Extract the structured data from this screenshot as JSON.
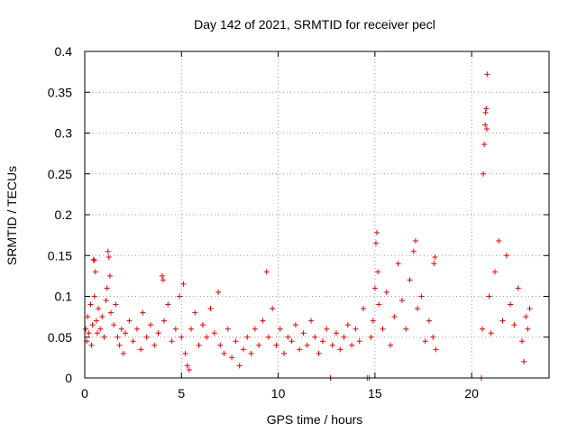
{
  "chart_data": {
    "type": "scatter",
    "title": "Day 142 of 2021, SRMTID for receiver pecl",
    "xlabel": "GPS time / hours",
    "ylabel": "SRMTID / TECUs",
    "xlim": [
      0,
      24
    ],
    "ylim": [
      0,
      0.4
    ],
    "xticks": [
      0,
      5,
      10,
      15,
      20
    ],
    "xtick_labels": [
      "0",
      "5",
      "10",
      "15",
      "20"
    ],
    "yticks": [
      0,
      0.05,
      0.1,
      0.15,
      0.2,
      0.25,
      0.3,
      0.35,
      0.4
    ],
    "ytick_labels": [
      "0",
      "0.05",
      "0.1",
      "0.15",
      "0.2",
      "0.25",
      "0.3",
      "0.35",
      "0.4"
    ],
    "grid": true,
    "marker": "plus",
    "marker_color": "#ee0000",
    "series": [
      {
        "name": "SRMTID",
        "points": [
          [
            0.05,
            0.06
          ],
          [
            0.1,
            0.045
          ],
          [
            0.15,
            0.075
          ],
          [
            0.2,
            0.055
          ],
          [
            0.3,
            0.09
          ],
          [
            0.35,
            0.04
          ],
          [
            0.4,
            0.065
          ],
          [
            0.45,
            0.145
          ],
          [
            0.5,
            0.144
          ],
          [
            0.5,
            0.1
          ],
          [
            0.55,
            0.13
          ],
          [
            0.6,
            0.07
          ],
          [
            0.65,
            0.055
          ],
          [
            0.7,
            0.085
          ],
          [
            0.8,
            0.06
          ],
          [
            0.9,
            0.075
          ],
          [
            1.0,
            0.05
          ],
          [
            1.1,
            0.095
          ],
          [
            1.15,
            0.11
          ],
          [
            1.2,
            0.155
          ],
          [
            1.25,
            0.148
          ],
          [
            1.3,
            0.125
          ],
          [
            1.35,
            0.08
          ],
          [
            1.5,
            0.065
          ],
          [
            1.6,
            0.09
          ],
          [
            1.7,
            0.05
          ],
          [
            1.8,
            0.04
          ],
          [
            1.9,
            0.06
          ],
          [
            2.0,
            0.03
          ],
          [
            2.1,
            0.055
          ],
          [
            2.3,
            0.07
          ],
          [
            2.5,
            0.045
          ],
          [
            2.7,
            0.06
          ],
          [
            2.9,
            0.035
          ],
          [
            3.0,
            0.08
          ],
          [
            3.2,
            0.05
          ],
          [
            3.4,
            0.065
          ],
          [
            3.6,
            0.04
          ],
          [
            3.8,
            0.055
          ],
          [
            4.0,
            0.125
          ],
          [
            4.05,
            0.12
          ],
          [
            4.1,
            0.07
          ],
          [
            4.3,
            0.09
          ],
          [
            4.5,
            0.045
          ],
          [
            4.7,
            0.06
          ],
          [
            4.9,
            0.1
          ],
          [
            5.0,
            0.05
          ],
          [
            5.1,
            0.115
          ],
          [
            5.2,
            0.03
          ],
          [
            5.3,
            0.015
          ],
          [
            5.4,
            0.01
          ],
          [
            5.5,
            0.06
          ],
          [
            5.7,
            0.08
          ],
          [
            5.9,
            0.04
          ],
          [
            6.1,
            0.065
          ],
          [
            6.3,
            0.05
          ],
          [
            6.5,
            0.085
          ],
          [
            6.7,
            0.055
          ],
          [
            6.9,
            0.105
          ],
          [
            7.0,
            0.04
          ],
          [
            7.2,
            0.03
          ],
          [
            7.4,
            0.06
          ],
          [
            7.6,
            0.025
          ],
          [
            7.8,
            0.045
          ],
          [
            8.0,
            0.015
          ],
          [
            8.2,
            0.035
          ],
          [
            8.4,
            0.05
          ],
          [
            8.6,
            0.03
          ],
          [
            8.8,
            0.06
          ],
          [
            9.0,
            0.04
          ],
          [
            9.2,
            0.07
          ],
          [
            9.4,
            0.13
          ],
          [
            9.5,
            0.05
          ],
          [
            9.7,
            0.085
          ],
          [
            9.9,
            0.04
          ],
          [
            10.1,
            0.06
          ],
          [
            10.3,
            0.03
          ],
          [
            10.5,
            0.05
          ],
          [
            10.7,
            0.045
          ],
          [
            10.9,
            0.065
          ],
          [
            11.1,
            0.035
          ],
          [
            11.3,
            0.055
          ],
          [
            11.5,
            0.04
          ],
          [
            11.7,
            0.07
          ],
          [
            11.9,
            0.05
          ],
          [
            12.1,
            0.03
          ],
          [
            12.3,
            0.045
          ],
          [
            12.5,
            0.06
          ],
          [
            12.7,
            0.0
          ],
          [
            12.8,
            0.04
          ],
          [
            13.0,
            0.055
          ],
          [
            13.2,
            0.035
          ],
          [
            13.4,
            0.05
          ],
          [
            13.6,
            0.065
          ],
          [
            13.8,
            0.04
          ],
          [
            14.0,
            0.06
          ],
          [
            14.2,
            0.045
          ],
          [
            14.4,
            0.085
          ],
          [
            14.6,
            0.0
          ],
          [
            14.7,
            0.0
          ],
          [
            14.8,
            0.05
          ],
          [
            14.9,
            0.07
          ],
          [
            15.0,
            0.11
          ],
          [
            15.05,
            0.165
          ],
          [
            15.1,
            0.178
          ],
          [
            15.15,
            0.13
          ],
          [
            15.2,
            0.09
          ],
          [
            15.4,
            0.06
          ],
          [
            15.6,
            0.105
          ],
          [
            15.8,
            0.04
          ],
          [
            16.0,
            0.075
          ],
          [
            16.2,
            0.14
          ],
          [
            16.4,
            0.095
          ],
          [
            16.6,
            0.06
          ],
          [
            16.8,
            0.12
          ],
          [
            17.0,
            0.155
          ],
          [
            17.1,
            0.168
          ],
          [
            17.2,
            0.085
          ],
          [
            17.4,
            0.1
          ],
          [
            17.6,
            0.045
          ],
          [
            17.8,
            0.07
          ],
          [
            18.0,
            0.05
          ],
          [
            18.05,
            0.14
          ],
          [
            18.1,
            0.148
          ],
          [
            18.15,
            0.035
          ],
          [
            20.5,
            0.0
          ],
          [
            20.55,
            0.06
          ],
          [
            20.6,
            0.25
          ],
          [
            20.65,
            0.286
          ],
          [
            20.7,
            0.31
          ],
          [
            20.72,
            0.325
          ],
          [
            20.75,
            0.33
          ],
          [
            20.78,
            0.305
          ],
          [
            20.8,
            0.372
          ],
          [
            20.9,
            0.1
          ],
          [
            21.0,
            0.055
          ],
          [
            21.2,
            0.13
          ],
          [
            21.4,
            0.168
          ],
          [
            21.6,
            0.07
          ],
          [
            21.8,
            0.15
          ],
          [
            22.0,
            0.09
          ],
          [
            22.2,
            0.065
          ],
          [
            22.4,
            0.11
          ],
          [
            22.6,
            0.045
          ],
          [
            22.7,
            0.02
          ],
          [
            22.8,
            0.075
          ],
          [
            22.9,
            0.06
          ],
          [
            23.0,
            0.085
          ]
        ]
      }
    ]
  }
}
